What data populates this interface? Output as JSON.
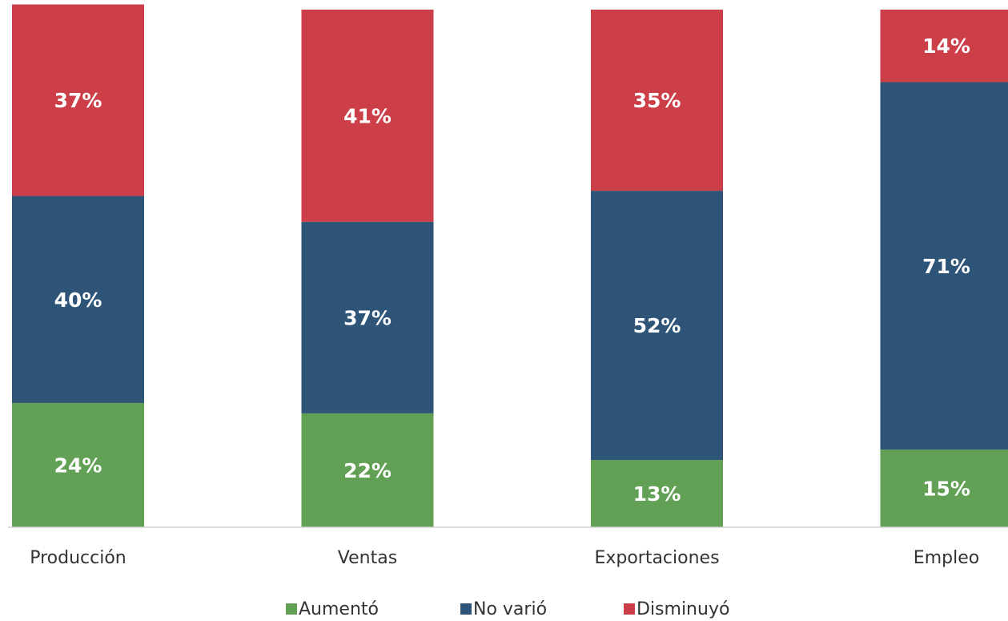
{
  "chart_data": {
    "type": "stacked_bar",
    "categories": [
      "Producción",
      "Ventas",
      "Exportaciones",
      "Empleo"
    ],
    "series": [
      {
        "name": "Aumentó",
        "color": "#62a056",
        "values": [
          24,
          22,
          13,
          15
        ],
        "value_labels": [
          "24%",
          "22%",
          "13%",
          "15%"
        ]
      },
      {
        "name": "No varió",
        "color": "#2e5478",
        "values": [
          40,
          37,
          52,
          71
        ],
        "value_labels": [
          "40%",
          "37%",
          "52%",
          "71%"
        ]
      },
      {
        "name": "Disminuyó",
        "color": "#cc3f49",
        "values": [
          37,
          41,
          35,
          14
        ],
        "value_labels": [
          "37%",
          "41%",
          "35%",
          "14%"
        ]
      }
    ],
    "ylim": [
      0,
      100
    ],
    "legend": "bottom"
  }
}
